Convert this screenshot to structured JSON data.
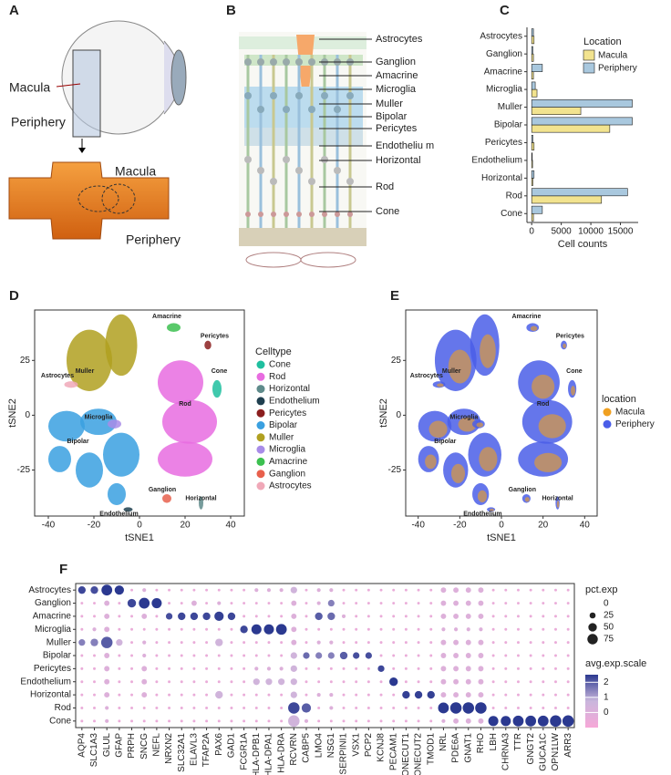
{
  "panel_a": {
    "panel_label": "A",
    "labels": [
      "Macula",
      "Periphery",
      "Macula",
      "Periphery"
    ]
  },
  "panel_b": {
    "panel_label": "B",
    "labels": [
      "Astrocytes",
      "Ganglion",
      "Amacrine",
      "Microglia",
      "Muller",
      "Bipolar",
      "Pericytes",
      "Endotheliu m",
      "Horizontal",
      "Rod",
      "Cone"
    ]
  },
  "chart_data": [
    {
      "type": "bar",
      "panel_label": "C",
      "orientation": "horizontal",
      "xlabel": "Cell counts",
      "categories": [
        "Astrocytes",
        "Ganglion",
        "Amacrine",
        "Microglia",
        "Muller",
        "Bipolar",
        "Pericytes",
        "Endothelium",
        "Horizontal",
        "Rod",
        "Cone"
      ],
      "legend_title": "Location",
      "series": [
        {
          "name": "Macula",
          "color": "#f2e38f",
          "values": [
            400,
            300,
            300,
            900,
            8300,
            13200,
            400,
            150,
            200,
            11800,
            300
          ]
        },
        {
          "name": "Periphery",
          "color": "#a9c8de",
          "values": [
            300,
            200,
            1800,
            600,
            17000,
            17000,
            200,
            100,
            400,
            16200,
            1800
          ]
        }
      ],
      "xlim": [
        -800,
        18000
      ],
      "xticks": [
        0,
        5000,
        10000,
        15000
      ]
    },
    {
      "type": "scatter",
      "panel_label": "D",
      "xlabel": "tSNE1",
      "ylabel": "tSNE2",
      "xlim": [
        -46,
        46
      ],
      "ylim": [
        -46,
        48
      ],
      "xticks": [
        -40,
        -20,
        0,
        20,
        40
      ],
      "yticks": [
        -25,
        0,
        25
      ],
      "legend_title": "Celltype",
      "legend": [
        {
          "name": "Cone",
          "color": "#1fbf9f"
        },
        {
          "name": "Rod",
          "color": "#e86ce0"
        },
        {
          "name": "Horizontal",
          "color": "#5f8b8b"
        },
        {
          "name": "Endothelium",
          "color": "#1f3f4f"
        },
        {
          "name": "Pericytes",
          "color": "#8b1e1e"
        },
        {
          "name": "Bipolar",
          "color": "#3aa0e0"
        },
        {
          "name": "Muller",
          "color": "#b0a020"
        },
        {
          "name": "Microglia",
          "color": "#a88ce8"
        },
        {
          "name": "Amacrine",
          "color": "#3cc050"
        },
        {
          "name": "Ganglion",
          "color": "#e8604c"
        },
        {
          "name": "Astrocytes",
          "color": "#f0a8b8"
        }
      ],
      "annotations": [
        "Amacrine",
        "Pericytes",
        "Astrocytes",
        "Cone",
        "Muller",
        "Rod",
        "Microglia",
        "Bipolar",
        "Ganglion",
        "Horizontal",
        "Endothelium"
      ]
    },
    {
      "type": "scatter",
      "panel_label": "E",
      "xlabel": "tSNE1",
      "ylabel": "tSNE2",
      "xlim": [
        -46,
        46
      ],
      "ylim": [
        -46,
        48
      ],
      "xticks": [
        -40,
        -20,
        0,
        20,
        40
      ],
      "yticks": [
        -25,
        0,
        25
      ],
      "legend_title": "location",
      "legend": [
        {
          "name": "Macula",
          "color": "#f0a020"
        },
        {
          "name": "Periphery",
          "color": "#4a5ee8"
        }
      ],
      "annotations": [
        "Amacrine",
        "Pericytes",
        "Astrocytes",
        "Cone",
        "Muller",
        "Rod",
        "Microglia",
        "Bipolar",
        "Ganglion",
        "Horizontal",
        "Endothelium"
      ]
    },
    {
      "type": "dot",
      "panel_label": "F",
      "rows": [
        "Astrocytes",
        "Ganglion",
        "Amacrine",
        "Microglia",
        "Muller",
        "Bipolar",
        "Pericytes",
        "Endothelium",
        "Horizontal",
        "Rod",
        "Cone"
      ],
      "genes": [
        "AQP4",
        "SLC1A3",
        "GLUL",
        "GFAP",
        "PRPH",
        "SNCG",
        "NEFL",
        "NRXN2",
        "SLC32A1",
        "ELAVL3",
        "TFAP2A",
        "PAX6",
        "GAD1",
        "FCGR1A",
        "HLA-DPB1",
        "HLA-DPA1",
        "HLA-DRA",
        "RCVRN",
        "CABP5",
        "LMO4",
        "NSG1",
        "SERPINI1",
        "VSX1",
        "PCP2",
        "KCNJ8",
        "PECAM1",
        "ONECUT1",
        "ONECUT2",
        "TMOD1",
        "NRL",
        "PDE6A",
        "GNAT1",
        "RHO",
        "LBH",
        "CHRNA3",
        "TTR",
        "GNGT2",
        "GUCA1C",
        "OPN1LW",
        "ARR3"
      ],
      "size_title": "pct.exp",
      "size_ticks": [
        0,
        25,
        50,
        75
      ],
      "color_title": "avg.exp.scale",
      "color_lim": [
        -1,
        2.5
      ],
      "color_ticks": [
        0,
        1,
        2
      ],
      "pct": [
        [
          40,
          40,
          80,
          60,
          5,
          10,
          5,
          5,
          5,
          5,
          5,
          5,
          5,
          5,
          10,
          10,
          10,
          30,
          5,
          10,
          10,
          5,
          5,
          5,
          5,
          5,
          5,
          5,
          5,
          20,
          20,
          20,
          20,
          5,
          5,
          5,
          5,
          5,
          5,
          5
        ],
        [
          5,
          5,
          20,
          5,
          50,
          80,
          70,
          5,
          5,
          20,
          5,
          10,
          5,
          5,
          5,
          5,
          5,
          20,
          5,
          10,
          30,
          5,
          5,
          5,
          5,
          5,
          5,
          5,
          5,
          20,
          20,
          20,
          20,
          5,
          5,
          5,
          5,
          5,
          5,
          5
        ],
        [
          5,
          5,
          20,
          5,
          5,
          20,
          5,
          30,
          40,
          40,
          40,
          60,
          40,
          5,
          5,
          5,
          5,
          20,
          5,
          40,
          40,
          10,
          5,
          5,
          5,
          5,
          5,
          5,
          5,
          20,
          20,
          20,
          20,
          5,
          5,
          5,
          5,
          5,
          5,
          5
        ],
        [
          5,
          10,
          20,
          5,
          5,
          5,
          5,
          5,
          5,
          5,
          5,
          5,
          5,
          40,
          70,
          70,
          80,
          20,
          5,
          5,
          5,
          5,
          5,
          5,
          5,
          5,
          5,
          5,
          5,
          10,
          10,
          10,
          10,
          5,
          5,
          5,
          5,
          5,
          5,
          5
        ],
        [
          30,
          40,
          90,
          30,
          5,
          10,
          5,
          5,
          5,
          5,
          5,
          40,
          5,
          5,
          5,
          5,
          5,
          20,
          5,
          10,
          10,
          5,
          5,
          5,
          5,
          5,
          5,
          5,
          5,
          20,
          20,
          20,
          20,
          5,
          5,
          5,
          5,
          5,
          5,
          5
        ],
        [
          5,
          5,
          20,
          5,
          5,
          10,
          5,
          5,
          5,
          5,
          5,
          5,
          5,
          5,
          5,
          5,
          5,
          30,
          30,
          30,
          30,
          40,
          30,
          30,
          5,
          5,
          5,
          5,
          5,
          20,
          20,
          20,
          20,
          5,
          5,
          5,
          5,
          5,
          5,
          5
        ],
        [
          5,
          5,
          20,
          5,
          5,
          20,
          5,
          5,
          5,
          5,
          5,
          5,
          5,
          5,
          10,
          10,
          10,
          30,
          5,
          5,
          5,
          5,
          5,
          5,
          30,
          5,
          5,
          5,
          5,
          20,
          20,
          20,
          20,
          5,
          5,
          5,
          5,
          5,
          5,
          5
        ],
        [
          5,
          5,
          20,
          5,
          5,
          20,
          5,
          5,
          5,
          5,
          5,
          5,
          5,
          5,
          30,
          30,
          30,
          30,
          5,
          5,
          5,
          5,
          5,
          5,
          5,
          50,
          5,
          5,
          5,
          20,
          20,
          20,
          20,
          5,
          5,
          5,
          5,
          5,
          5,
          5
        ],
        [
          5,
          5,
          20,
          5,
          5,
          20,
          5,
          5,
          5,
          5,
          5,
          40,
          5,
          5,
          5,
          5,
          5,
          30,
          5,
          10,
          10,
          5,
          5,
          5,
          5,
          5,
          40,
          40,
          40,
          20,
          20,
          20,
          20,
          5,
          5,
          5,
          5,
          5,
          5,
          5
        ],
        [
          5,
          5,
          10,
          5,
          5,
          5,
          5,
          5,
          5,
          5,
          5,
          5,
          5,
          5,
          5,
          5,
          5,
          90,
          60,
          5,
          10,
          5,
          5,
          5,
          5,
          5,
          5,
          5,
          5,
          80,
          90,
          90,
          90,
          5,
          5,
          5,
          5,
          5,
          5,
          5
        ],
        [
          5,
          5,
          10,
          5,
          5,
          5,
          5,
          5,
          5,
          5,
          5,
          5,
          5,
          5,
          5,
          5,
          5,
          90,
          10,
          5,
          5,
          5,
          5,
          5,
          5,
          5,
          5,
          5,
          5,
          10,
          20,
          20,
          20,
          70,
          70,
          80,
          80,
          80,
          90,
          90
        ]
      ],
      "avg": [
        [
          2.3,
          2.2,
          2.5,
          2.5,
          -0.5,
          0,
          -0.5,
          -0.5,
          -0.5,
          -0.5,
          -0.5,
          -0.5,
          -0.5,
          -0.5,
          0,
          0,
          0,
          0.5,
          -0.5,
          0,
          0,
          -0.5,
          -0.5,
          -0.5,
          -0.5,
          -0.5,
          -0.5,
          -0.5,
          -0.5,
          0,
          0,
          0,
          0,
          -0.5,
          -0.5,
          -0.5,
          -0.5,
          -0.5,
          -0.5,
          -0.5
        ],
        [
          -0.5,
          -0.5,
          0,
          -0.5,
          2.3,
          2.5,
          2.5,
          -0.5,
          -0.5,
          0,
          -0.5,
          0,
          -0.5,
          -0.5,
          -0.5,
          -0.5,
          -0.5,
          0,
          -0.5,
          0,
          1.5,
          -0.5,
          -0.5,
          -0.5,
          -0.5,
          -0.5,
          -0.5,
          -0.5,
          -0.5,
          0,
          0,
          0,
          0,
          -0.5,
          -0.5,
          -0.5,
          -0.5,
          -0.5,
          -0.5,
          -0.5
        ],
        [
          -0.5,
          -0.5,
          0,
          -0.5,
          -0.5,
          0,
          -0.5,
          2.2,
          2.3,
          2.3,
          2.3,
          2.4,
          2.3,
          -0.5,
          -0.5,
          -0.5,
          -0.5,
          0,
          -0.5,
          2,
          1.8,
          0,
          -0.5,
          -0.5,
          -0.5,
          -0.5,
          -0.5,
          -0.5,
          -0.5,
          0,
          0,
          0,
          0,
          -0.5,
          -0.5,
          -0.5,
          -0.5,
          -0.5,
          -0.5,
          -0.5
        ],
        [
          -0.5,
          0,
          0,
          -0.5,
          -0.5,
          -0.5,
          -0.5,
          -0.5,
          -0.5,
          -0.5,
          -0.5,
          -0.5,
          -0.5,
          2.3,
          2.5,
          2.5,
          2.5,
          0,
          -0.5,
          -0.5,
          -0.5,
          -0.5,
          -0.5,
          -0.5,
          -0.5,
          -0.5,
          -0.5,
          -0.5,
          -0.5,
          0,
          0,
          0,
          0,
          -0.5,
          -0.5,
          -0.5,
          -0.5,
          -0.5,
          -0.5,
          -0.5
        ],
        [
          1.5,
          1.5,
          2,
          0.5,
          -0.5,
          0,
          -0.5,
          -0.5,
          -0.5,
          -0.5,
          -0.5,
          0.5,
          -0.5,
          -0.5,
          -0.5,
          -0.5,
          -0.5,
          0,
          -0.5,
          0,
          0,
          -0.5,
          -0.5,
          -0.5,
          -0.5,
          -0.5,
          -0.5,
          -0.5,
          -0.5,
          0,
          0,
          0,
          0,
          -0.5,
          -0.5,
          -0.5,
          -0.5,
          -0.5,
          -0.5,
          -0.5
        ],
        [
          -0.5,
          -0.5,
          0,
          -0.5,
          -0.5,
          0,
          -0.5,
          -0.5,
          -0.5,
          -0.5,
          -0.5,
          -0.5,
          -0.5,
          -0.5,
          -0.5,
          -0.5,
          -0.5,
          0.5,
          1.8,
          1.5,
          1.5,
          2,
          2.2,
          2.2,
          -0.5,
          -0.5,
          -0.5,
          -0.5,
          -0.5,
          0,
          0,
          0,
          0,
          -0.5,
          -0.5,
          -0.5,
          -0.5,
          -0.5,
          -0.5,
          -0.5
        ],
        [
          -0.5,
          -0.5,
          0,
          -0.5,
          -0.5,
          0,
          -0.5,
          -0.5,
          -0.5,
          -0.5,
          -0.5,
          -0.5,
          -0.5,
          -0.5,
          0,
          0,
          0,
          0.5,
          -0.5,
          -0.5,
          -0.5,
          -0.5,
          -0.5,
          -0.5,
          2.3,
          -0.5,
          -0.5,
          -0.5,
          -0.5,
          0,
          0,
          0,
          0,
          -0.5,
          -0.5,
          -0.5,
          -0.5,
          -0.5,
          -0.5,
          -0.5
        ],
        [
          -0.5,
          -0.5,
          0,
          -0.5,
          -0.5,
          0,
          -0.5,
          -0.5,
          -0.5,
          -0.5,
          -0.5,
          -0.5,
          -0.5,
          -0.5,
          0.5,
          0.5,
          0.5,
          0.5,
          -0.5,
          -0.5,
          -0.5,
          -0.5,
          -0.5,
          -0.5,
          -0.5,
          2.5,
          -0.5,
          -0.5,
          -0.5,
          0,
          0,
          0,
          0,
          -0.5,
          -0.5,
          -0.5,
          -0.5,
          -0.5,
          -0.5,
          -0.5
        ],
        [
          -0.5,
          -0.5,
          0,
          -0.5,
          -0.5,
          0,
          -0.5,
          -0.5,
          -0.5,
          -0.5,
          -0.5,
          0.5,
          -0.5,
          -0.5,
          -0.5,
          -0.5,
          -0.5,
          0.5,
          -0.5,
          0,
          0,
          -0.5,
          -0.5,
          -0.5,
          -0.5,
          -0.5,
          2.4,
          2.4,
          2.4,
          0,
          0,
          0,
          0,
          -0.5,
          -0.5,
          -0.5,
          -0.5,
          -0.5,
          -0.5,
          -0.5
        ],
        [
          -0.5,
          -0.5,
          0,
          -0.5,
          -0.5,
          -0.5,
          -0.5,
          -0.5,
          -0.5,
          -0.5,
          -0.5,
          -0.5,
          -0.5,
          -0.5,
          -0.5,
          -0.5,
          -0.5,
          2.3,
          2,
          -0.5,
          0,
          -0.5,
          -0.5,
          -0.5,
          -0.5,
          -0.5,
          -0.5,
          -0.5,
          -0.5,
          2.5,
          2.5,
          2.5,
          2.5,
          -0.5,
          -0.5,
          -0.5,
          -0.5,
          -0.5,
          -0.5,
          -0.5
        ],
        [
          -0.5,
          -0.5,
          0,
          -0.5,
          -0.5,
          -0.5,
          -0.5,
          -0.5,
          -0.5,
          -0.5,
          -0.5,
          -0.5,
          -0.5,
          -0.5,
          -0.5,
          -0.5,
          -0.5,
          0.5,
          0,
          -0.5,
          -0.5,
          -0.5,
          -0.5,
          -0.5,
          -0.5,
          -0.5,
          -0.5,
          -0.5,
          -0.5,
          0,
          0,
          0,
          0,
          2.5,
          2.5,
          2.5,
          2.5,
          2.5,
          2.5,
          2.5
        ]
      ]
    }
  ]
}
